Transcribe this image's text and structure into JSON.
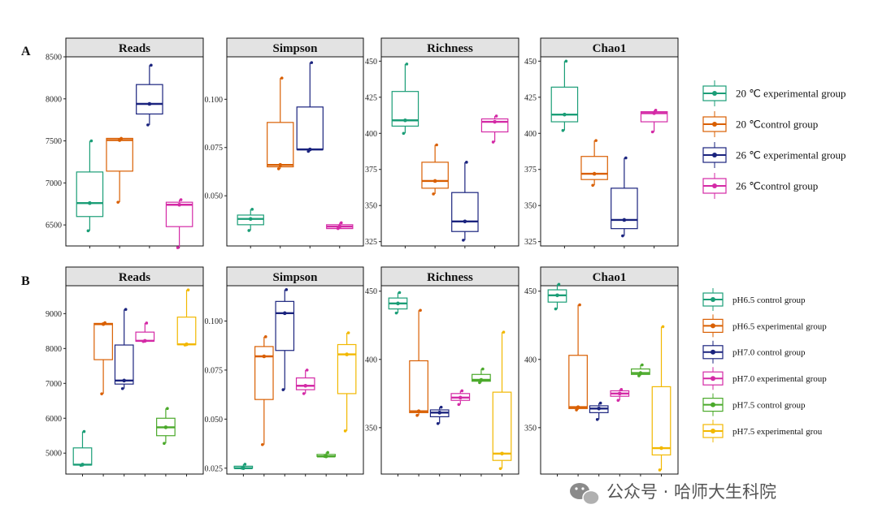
{
  "chart_data": [
    {
      "panel": "A",
      "type": "box",
      "groups": [
        "20 ℃ experimental group",
        "20 ℃control group",
        "26 ℃ experimental group",
        "26 ℃control group"
      ],
      "colors": [
        "#1b9e77",
        "#d95f02",
        "#1a237e",
        "#d42aa6"
      ],
      "facets": [
        {
          "title": "Reads",
          "ylim": [
            6250,
            8500
          ],
          "yticks": [
            "6500",
            "7000",
            "7500",
            "8000",
            "8500"
          ],
          "ytick_values": [
            6500,
            7000,
            7500,
            8000,
            8500
          ],
          "boxes": [
            {
              "min": 6430,
              "q1": 6600,
              "median": 6760,
              "q3": 7130,
              "max": 7500
            },
            {
              "min": 6770,
              "q1": 7140,
              "median": 7510,
              "q3": 7530,
              "max": 7530
            },
            {
              "min": 7690,
              "q1": 7820,
              "median": 7940,
              "q3": 8170,
              "max": 8400
            },
            {
              "min": 6230,
              "q1": 6480,
              "median": 6740,
              "q3": 6770,
              "max": 6800
            }
          ]
        },
        {
          "title": "Simpson",
          "ylim": [
            0.024,
            0.122
          ],
          "yticks": [
            "0.050",
            "0.075",
            "0.100"
          ],
          "ytick_values": [
            0.05,
            0.075,
            0.1
          ],
          "boxes": [
            {
              "min": 0.032,
              "q1": 0.035,
              "median": 0.038,
              "q3": 0.04,
              "max": 0.043
            },
            {
              "min": 0.064,
              "q1": 0.065,
              "median": 0.066,
              "q3": 0.088,
              "max": 0.111
            },
            {
              "min": 0.073,
              "q1": 0.074,
              "median": 0.074,
              "q3": 0.096,
              "max": 0.119
            },
            {
              "min": 0.033,
              "q1": 0.033,
              "median": 0.034,
              "q3": 0.035,
              "max": 0.036
            }
          ]
        },
        {
          "title": "Richness",
          "ylim": [
            322,
            453
          ],
          "yticks": [
            "325",
            "350",
            "375",
            "400",
            "425",
            "450"
          ],
          "ytick_values": [
            325,
            350,
            375,
            400,
            425,
            450
          ],
          "boxes": [
            {
              "min": 400,
              "q1": 405,
              "median": 409,
              "q3": 429,
              "max": 448
            },
            {
              "min": 358,
              "q1": 362,
              "median": 367,
              "q3": 380,
              "max": 392
            },
            {
              "min": 326,
              "q1": 332,
              "median": 339,
              "q3": 359,
              "max": 380
            },
            {
              "min": 394,
              "q1": 401,
              "median": 408,
              "q3": 410,
              "max": 412
            }
          ]
        },
        {
          "title": "Chao1",
          "ylim": [
            322,
            453
          ],
          "yticks": [
            "325",
            "350",
            "375",
            "400",
            "425",
            "450"
          ],
          "ytick_values": [
            325,
            350,
            375,
            400,
            425,
            450
          ],
          "boxes": [
            {
              "min": 402,
              "q1": 408,
              "median": 413,
              "q3": 432,
              "max": 450
            },
            {
              "min": 364,
              "q1": 368,
              "median": 372,
              "q3": 384,
              "max": 395
            },
            {
              "min": 329,
              "q1": 334,
              "median": 340,
              "q3": 362,
              "max": 383
            },
            {
              "min": 401,
              "q1": 408,
              "median": 414,
              "q3": 415,
              "max": 416
            }
          ]
        }
      ]
    },
    {
      "panel": "B",
      "type": "box",
      "groups": [
        "pH6.5 control group",
        "pH6.5 experimental group",
        "pH7.0 control group",
        "pH7.0 experimental group",
        "pH7.5 control group",
        "pH7.5 experimental grou"
      ],
      "colors": [
        "#1b9e77",
        "#d95f02",
        "#1a237e",
        "#d42aa6",
        "#4aa92a",
        "#f2b800"
      ],
      "facets": [
        {
          "title": "Reads",
          "ylim": [
            4400,
            9800
          ],
          "yticks": [
            "5000",
            "6000",
            "7000",
            "8000",
            "9000"
          ],
          "ytick_values": [
            5000,
            6000,
            7000,
            8000,
            9000
          ],
          "boxes": [
            {
              "min": 4650,
              "q1": 4660,
              "median": 4670,
              "q3": 5150,
              "max": 5620
            },
            {
              "min": 6700,
              "q1": 7680,
              "median": 8700,
              "q3": 8720,
              "max": 8740
            },
            {
              "min": 6850,
              "q1": 6980,
              "median": 7080,
              "q3": 8100,
              "max": 9120
            },
            {
              "min": 8200,
              "q1": 8210,
              "median": 8220,
              "q3": 8470,
              "max": 8730
            },
            {
              "min": 5280,
              "q1": 5500,
              "median": 5740,
              "q3": 6000,
              "max": 6280
            },
            {
              "min": 8100,
              "q1": 8110,
              "median": 8120,
              "q3": 8900,
              "max": 9680
            }
          ]
        },
        {
          "title": "Simpson",
          "ylim": [
            0.022,
            0.118
          ],
          "yticks": [
            "0.025",
            "0.050",
            "0.075",
            "0.100"
          ],
          "ytick_values": [
            0.025,
            0.05,
            0.075,
            0.1
          ],
          "boxes": [
            {
              "min": 0.025,
              "q1": 0.025,
              "median": 0.025,
              "q3": 0.026,
              "max": 0.027
            },
            {
              "min": 0.037,
              "q1": 0.06,
              "median": 0.082,
              "q3": 0.087,
              "max": 0.092
            },
            {
              "min": 0.065,
              "q1": 0.085,
              "median": 0.104,
              "q3": 0.11,
              "max": 0.116
            },
            {
              "min": 0.063,
              "q1": 0.065,
              "median": 0.067,
              "q3": 0.071,
              "max": 0.075
            },
            {
              "min": 0.031,
              "q1": 0.031,
              "median": 0.031,
              "q3": 0.032,
              "max": 0.033
            },
            {
              "min": 0.044,
              "q1": 0.063,
              "median": 0.083,
              "q3": 0.088,
              "max": 0.094
            }
          ]
        },
        {
          "title": "Richness",
          "ylim": [
            316,
            454
          ],
          "yticks": [
            "350",
            "400",
            "450"
          ],
          "ytick_values": [
            350,
            400,
            450
          ],
          "boxes": [
            {
              "min": 434,
              "q1": 437,
              "median": 441,
              "q3": 445,
              "max": 449
            },
            {
              "min": 359,
              "q1": 361,
              "median": 362,
              "q3": 399,
              "max": 436
            },
            {
              "min": 353,
              "q1": 358,
              "median": 361,
              "q3": 363,
              "max": 365
            },
            {
              "min": 367,
              "q1": 370,
              "median": 372,
              "q3": 375,
              "max": 377
            },
            {
              "min": 383,
              "q1": 384,
              "median": 385,
              "q3": 389,
              "max": 393
            },
            {
              "min": 320,
              "q1": 326,
              "median": 331,
              "q3": 376,
              "max": 420
            }
          ]
        },
        {
          "title": "Chao1",
          "ylim": [
            316,
            454
          ],
          "yticks": [
            "350",
            "400",
            "450"
          ],
          "ytick_values": [
            350,
            400,
            450
          ],
          "boxes": [
            {
              "min": 437,
              "q1": 442,
              "median": 447,
              "q3": 451,
              "max": 455
            },
            {
              "min": 363,
              "q1": 364,
              "median": 365,
              "q3": 403,
              "max": 440
            },
            {
              "min": 356,
              "q1": 361,
              "median": 364,
              "q3": 366,
              "max": 368
            },
            {
              "min": 370,
              "q1": 373,
              "median": 375,
              "q3": 377,
              "max": 378
            },
            {
              "min": 388,
              "q1": 389,
              "median": 390,
              "q3": 393,
              "max": 396
            },
            {
              "min": 319,
              "q1": 330,
              "median": 335,
              "q3": 380,
              "max": 424
            }
          ]
        }
      ]
    }
  ],
  "colors": {
    "strip_fill": "#e3e3e3",
    "frame": "#111111"
  },
  "watermark": "公众号 · 哈师大生科院",
  "icons": {
    "watermark": "wechat-logo-icon"
  }
}
